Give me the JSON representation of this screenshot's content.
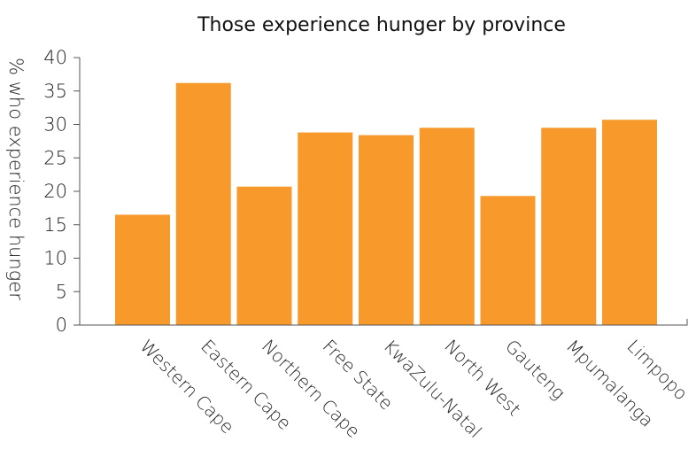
{
  "chart_data": {
    "type": "bar",
    "title": "Those experience hunger by province",
    "xlabel": "",
    "ylabel": "% who experience hunger",
    "categories": [
      "Western Cape",
      "Eastern Cape",
      "Northern Cape",
      "Free State",
      "KwaZulu-Natal",
      "North West",
      "Gauteng",
      "Mpumalanga",
      "Limpopo"
    ],
    "values": [
      16.5,
      36.2,
      20.7,
      28.8,
      28.4,
      29.5,
      19.3,
      29.5,
      30.7
    ],
    "ylim": [
      0,
      40
    ],
    "yticks": [
      0,
      5,
      10,
      15,
      20,
      25,
      30,
      35,
      40
    ],
    "grid": false,
    "legend": "none",
    "colors": {
      "bar": "#F7992B",
      "axis": "#555555",
      "text": "#222222"
    }
  }
}
